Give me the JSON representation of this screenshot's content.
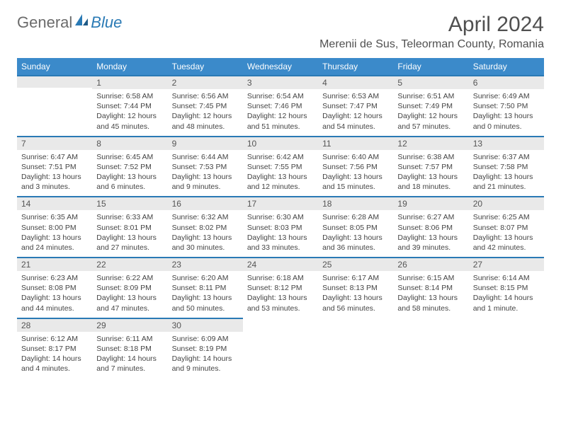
{
  "brand": {
    "general": "General",
    "blue": "Blue"
  },
  "title": "April 2024",
  "location": "Merenii de Sus, Teleorman County, Romania",
  "colors": {
    "header_bg": "#3b8aca",
    "header_text": "#ffffff",
    "border_top": "#2a7ab5",
    "daynum_bg": "#e9e9e9",
    "body_text": "#444444",
    "title_text": "#505050",
    "background": "#ffffff"
  },
  "weekdays": [
    "Sunday",
    "Monday",
    "Tuesday",
    "Wednesday",
    "Thursday",
    "Friday",
    "Saturday"
  ],
  "weeks": [
    [
      null,
      {
        "n": "1",
        "sr": "6:58 AM",
        "ss": "7:44 PM",
        "dl": "12 hours and 45 minutes."
      },
      {
        "n": "2",
        "sr": "6:56 AM",
        "ss": "7:45 PM",
        "dl": "12 hours and 48 minutes."
      },
      {
        "n": "3",
        "sr": "6:54 AM",
        "ss": "7:46 PM",
        "dl": "12 hours and 51 minutes."
      },
      {
        "n": "4",
        "sr": "6:53 AM",
        "ss": "7:47 PM",
        "dl": "12 hours and 54 minutes."
      },
      {
        "n": "5",
        "sr": "6:51 AM",
        "ss": "7:49 PM",
        "dl": "12 hours and 57 minutes."
      },
      {
        "n": "6",
        "sr": "6:49 AM",
        "ss": "7:50 PM",
        "dl": "13 hours and 0 minutes."
      }
    ],
    [
      {
        "n": "7",
        "sr": "6:47 AM",
        "ss": "7:51 PM",
        "dl": "13 hours and 3 minutes."
      },
      {
        "n": "8",
        "sr": "6:45 AM",
        "ss": "7:52 PM",
        "dl": "13 hours and 6 minutes."
      },
      {
        "n": "9",
        "sr": "6:44 AM",
        "ss": "7:53 PM",
        "dl": "13 hours and 9 minutes."
      },
      {
        "n": "10",
        "sr": "6:42 AM",
        "ss": "7:55 PM",
        "dl": "13 hours and 12 minutes."
      },
      {
        "n": "11",
        "sr": "6:40 AM",
        "ss": "7:56 PM",
        "dl": "13 hours and 15 minutes."
      },
      {
        "n": "12",
        "sr": "6:38 AM",
        "ss": "7:57 PM",
        "dl": "13 hours and 18 minutes."
      },
      {
        "n": "13",
        "sr": "6:37 AM",
        "ss": "7:58 PM",
        "dl": "13 hours and 21 minutes."
      }
    ],
    [
      {
        "n": "14",
        "sr": "6:35 AM",
        "ss": "8:00 PM",
        "dl": "13 hours and 24 minutes."
      },
      {
        "n": "15",
        "sr": "6:33 AM",
        "ss": "8:01 PM",
        "dl": "13 hours and 27 minutes."
      },
      {
        "n": "16",
        "sr": "6:32 AM",
        "ss": "8:02 PM",
        "dl": "13 hours and 30 minutes."
      },
      {
        "n": "17",
        "sr": "6:30 AM",
        "ss": "8:03 PM",
        "dl": "13 hours and 33 minutes."
      },
      {
        "n": "18",
        "sr": "6:28 AM",
        "ss": "8:05 PM",
        "dl": "13 hours and 36 minutes."
      },
      {
        "n": "19",
        "sr": "6:27 AM",
        "ss": "8:06 PM",
        "dl": "13 hours and 39 minutes."
      },
      {
        "n": "20",
        "sr": "6:25 AM",
        "ss": "8:07 PM",
        "dl": "13 hours and 42 minutes."
      }
    ],
    [
      {
        "n": "21",
        "sr": "6:23 AM",
        "ss": "8:08 PM",
        "dl": "13 hours and 44 minutes."
      },
      {
        "n": "22",
        "sr": "6:22 AM",
        "ss": "8:09 PM",
        "dl": "13 hours and 47 minutes."
      },
      {
        "n": "23",
        "sr": "6:20 AM",
        "ss": "8:11 PM",
        "dl": "13 hours and 50 minutes."
      },
      {
        "n": "24",
        "sr": "6:18 AM",
        "ss": "8:12 PM",
        "dl": "13 hours and 53 minutes."
      },
      {
        "n": "25",
        "sr": "6:17 AM",
        "ss": "8:13 PM",
        "dl": "13 hours and 56 minutes."
      },
      {
        "n": "26",
        "sr": "6:15 AM",
        "ss": "8:14 PM",
        "dl": "13 hours and 58 minutes."
      },
      {
        "n": "27",
        "sr": "6:14 AM",
        "ss": "8:15 PM",
        "dl": "14 hours and 1 minute."
      }
    ],
    [
      {
        "n": "28",
        "sr": "6:12 AM",
        "ss": "8:17 PM",
        "dl": "14 hours and 4 minutes."
      },
      {
        "n": "29",
        "sr": "6:11 AM",
        "ss": "8:18 PM",
        "dl": "14 hours and 7 minutes."
      },
      {
        "n": "30",
        "sr": "6:09 AM",
        "ss": "8:19 PM",
        "dl": "14 hours and 9 minutes."
      },
      null,
      null,
      null,
      null
    ]
  ],
  "labels": {
    "sunrise": "Sunrise:",
    "sunset": "Sunset:",
    "daylight": "Daylight:"
  }
}
